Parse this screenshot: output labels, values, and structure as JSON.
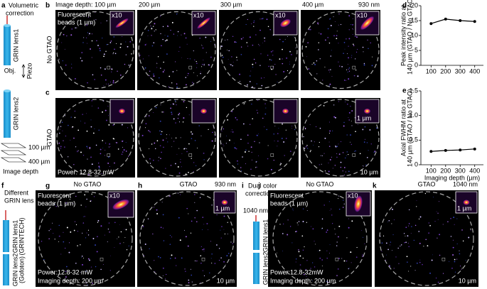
{
  "panels": {
    "a": {
      "label": "a",
      "title": [
        "Volumetric",
        "correction"
      ],
      "lens1": "GRIN lens1",
      "obj": "Obj.",
      "piezo": "Piezo",
      "lens2": "GRIN lens2",
      "depth_top": "100 µm",
      "depth_bottom": "400 µm",
      "depth_label": "Image depth"
    },
    "b": {
      "label": "b",
      "depths": [
        "Image depth: 100 µm",
        "200 µm",
        "300 µm",
        "400 µm"
      ],
      "wavelength": "930 nm",
      "row_label": "No GTAO",
      "sample": [
        "Fluorescent",
        "beads (1 µm)"
      ],
      "zoom": "x10"
    },
    "c": {
      "label": "c",
      "row_label": "GTAO",
      "power": "Power: 12.8-32 mW",
      "inset_scale": "1 µm",
      "scale": "10 µm"
    },
    "d": {
      "label": "d"
    },
    "e": {
      "label": "e"
    },
    "f": {
      "label": "f",
      "title": [
        "Different",
        "GRIN lens"
      ],
      "lens1": [
        "GRIN lens1",
        "(GRINTECH)"
      ],
      "lens2": [
        "GRIN lens2",
        "(Gofoton)"
      ]
    },
    "g": {
      "label": "g",
      "title": "No GTAO",
      "sample": [
        "Fluorescent",
        "beads (1 µm)"
      ],
      "zoom": "x10",
      "power": "Power:12.8-32 mW",
      "depth": "Imaging depth: 200 µm"
    },
    "h": {
      "label": "h",
      "title": "GTAO",
      "wavelength": "930 nm",
      "inset_scale": "1 µm",
      "scale": "10 µm"
    },
    "i": {
      "label": "i",
      "title": [
        "Dual color",
        "correction"
      ],
      "wavelength": "1040 nm",
      "lens1": "GRIN lens1",
      "lens2": "GRIN lens2"
    },
    "j": {
      "label": "j",
      "title": "No GTAO",
      "sample": [
        "Fluorescent",
        "beads (1 µm)"
      ],
      "zoom": "x10",
      "power": "Power:12.8-32mW",
      "depth": "Imaging depth: 200 µm"
    },
    "k": {
      "label": "k",
      "title": "GTAO",
      "wavelength": "1040 nm",
      "inset_scale": "1 µm",
      "scale": "10 µm"
    }
  },
  "chart_data": [
    {
      "type": "line",
      "x": [
        100,
        200,
        300,
        400
      ],
      "values": [
        14,
        15.5,
        15,
        14.7
      ],
      "color": "#000000",
      "xlim": [
        30,
        460
      ],
      "xticks": [
        100,
        200,
        300,
        400
      ],
      "ylim": [
        0,
        20
      ],
      "yticks": [
        0,
        5,
        10,
        15,
        20
      ],
      "ylabel": [
        "Peak intensity ratio at",
        "140 µm (GTAO / No GTAO)"
      ]
    },
    {
      "type": "line",
      "x": [
        100,
        200,
        300,
        400
      ],
      "values": [
        0.27,
        0.29,
        0.3,
        0.32
      ],
      "color": "#000000",
      "xlim": [
        30,
        460
      ],
      "xticks": [
        100,
        200,
        300,
        400
      ],
      "ylim": [
        0,
        1.5
      ],
      "yticks": [
        0,
        0.5,
        {
          "value": 1,
          "label": "1.0"
        },
        1.5
      ],
      "xlabel": "Imaging depth (µm)",
      "ylabel": [
        "Axial FWHM ratio at",
        "140 µm (GTAO / No GTAO)"
      ]
    }
  ]
}
